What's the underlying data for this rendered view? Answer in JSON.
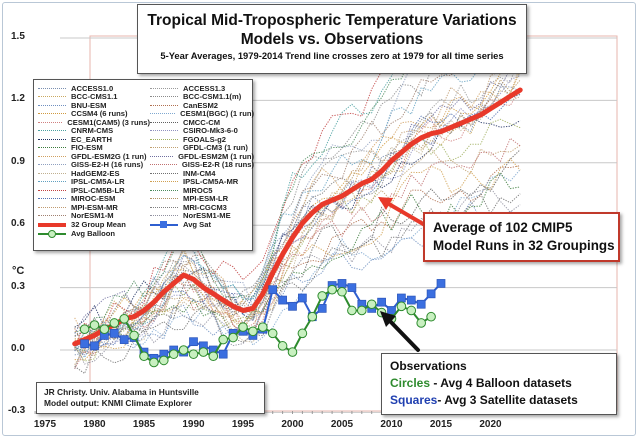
{
  "chart_data": {
    "type": "line",
    "title": "Tropical Mid-Tropospheric Temperature Variations",
    "subtitle": "Models vs. Observations",
    "note": "5-Year Averages, 1979-2014 Trend line crosses zero at 1979 for all time series",
    "xlabel": "",
    "ylabel": "°C",
    "xlim": [
      1974,
      2024
    ],
    "ylim": [
      -0.3,
      1.5
    ],
    "x_ticks": [
      1975,
      1980,
      1985,
      1990,
      1995,
      2000,
      2005,
      2010,
      2015,
      2020
    ],
    "y_ticks": [
      -0.3,
      0.0,
      0.3,
      0.6,
      0.9,
      1.2,
      1.5
    ],
    "y_tick_labels": [
      "-0.3",
      "0.0",
      "0.3",
      "0.6",
      "0.9",
      "1.2",
      "1.5"
    ],
    "unit_label": "°C",
    "grid": "horizontal",
    "legend": {
      "placement": "top-left",
      "entries": [
        {
          "name": "ACCESS1.0",
          "color": "#7a8fb0"
        },
        {
          "name": "ACCESS1.3",
          "color": "#9a9a9a"
        },
        {
          "name": "BCC-CMS1.1",
          "color": "#c9a860"
        },
        {
          "name": "BCC-CSM1.1(m)",
          "color": "#8a8a8a"
        },
        {
          "name": "BNU-ESM",
          "color": "#6f8fc0"
        },
        {
          "name": "CanESM2",
          "color": "#b07050"
        },
        {
          "name": "CCSM4 (6 runs)",
          "color": "#d09a40"
        },
        {
          "name": "CESM1(BGC) (1 run)",
          "color": "#7fa8d0"
        },
        {
          "name": "CESM1(CAM5) (3 runs)",
          "color": "#d08080"
        },
        {
          "name": "CMCC-CM",
          "color": "#606060"
        },
        {
          "name": "CNRM-CMS",
          "color": "#4aa0a0"
        },
        {
          "name": "CSIRO-Mk3-6-0",
          "color": "#9090c0"
        },
        {
          "name": "EC_EARTH",
          "color": "#203060"
        },
        {
          "name": "FGOALS-g2",
          "color": "#a0b060"
        },
        {
          "name": "FIO-ESM",
          "color": "#3a7a3a"
        },
        {
          "name": "GFDL-CM3 (1 run)",
          "color": "#c0a070"
        },
        {
          "name": "GFDL-ESM2G (1 run)",
          "color": "#d0a060"
        },
        {
          "name": "GFDL-ESM2M (1 run)",
          "color": "#6f6f9f"
        },
        {
          "name": "GISS-E2-H (16 runs)",
          "color": "#8fa0c0"
        },
        {
          "name": "GISS-E2-R (18 runs)",
          "color": "#c07070"
        },
        {
          "name": "HadGEM2-ES",
          "color": "#c0b090"
        },
        {
          "name": "INM-CM4",
          "color": "#707070"
        },
        {
          "name": "IPSL-CM5A-LR",
          "color": "#60a0c0"
        },
        {
          "name": "IPSL-CM5A-MR",
          "color": "#d0a050"
        },
        {
          "name": "IPSL-CM5B-LR",
          "color": "#c04040"
        },
        {
          "name": "MIROC5",
          "color": "#4a8a5a"
        },
        {
          "name": "MIROC-ESM",
          "color": "#5070b0"
        },
        {
          "name": "MPI-ESM-LR",
          "color": "#b09060"
        },
        {
          "name": "MPI-ESM-MR",
          "color": "#c09a70"
        },
        {
          "name": "MRI-CGCM3",
          "color": "#808080"
        },
        {
          "name": "NorESM1-M",
          "color": "#a08070"
        },
        {
          "name": "NorESM1-ME",
          "color": "#9090a0"
        },
        {
          "name": "32 Group Mean",
          "color": "#e8392a"
        },
        {
          "name": "Avg Sat",
          "color": "#2f5fd0"
        },
        {
          "name": "Avg Balloon",
          "color": "#2e8b2e"
        }
      ]
    },
    "series": [
      {
        "name": "32 Group Mean",
        "color": "#e8392a",
        "x": [
          1978,
          1979,
          1980,
          1981,
          1982,
          1983,
          1984,
          1985,
          1986,
          1987,
          1988,
          1989,
          1990,
          1991,
          1992,
          1993,
          1994,
          1995,
          1996,
          1997,
          1998,
          1999,
          2000,
          2001,
          2002,
          2003,
          2004,
          2005,
          2006,
          2007,
          2008,
          2009,
          2010,
          2011,
          2012,
          2013,
          2014,
          2015,
          2016,
          2017,
          2018,
          2019,
          2020,
          2021,
          2022,
          2023
        ],
        "values": [
          0.03,
          0.05,
          0.07,
          0.1,
          0.12,
          0.15,
          0.16,
          0.19,
          0.23,
          0.28,
          0.32,
          0.36,
          0.34,
          0.3,
          0.27,
          0.24,
          0.21,
          0.19,
          0.2,
          0.27,
          0.37,
          0.46,
          0.54,
          0.61,
          0.66,
          0.7,
          0.72,
          0.74,
          0.77,
          0.8,
          0.82,
          0.86,
          0.91,
          0.95,
          0.99,
          1.02,
          1.04,
          1.05,
          1.07,
          1.09,
          1.11,
          1.13,
          1.16,
          1.19,
          1.22,
          1.25
        ]
      },
      {
        "name": "Avg Sat",
        "color": "#2f5fd0",
        "marker": "square",
        "x": [
          1979,
          1980,
          1981,
          1982,
          1983,
          1984,
          1985,
          1986,
          1987,
          1988,
          1989,
          1990,
          1991,
          1992,
          1993,
          1994,
          1995,
          1996,
          1997,
          1998,
          1999,
          2000,
          2001,
          2002,
          2003,
          2004,
          2005,
          2006,
          2007,
          2008,
          2009,
          2010,
          2011,
          2012,
          2013,
          2014,
          2015
        ],
        "values": [
          0.03,
          0.02,
          0.07,
          0.08,
          0.05,
          0.06,
          -0.01,
          -0.04,
          -0.02,
          0.0,
          -0.01,
          0.04,
          0.02,
          0.0,
          -0.02,
          0.08,
          0.09,
          0.07,
          0.1,
          0.29,
          0.24,
          0.21,
          0.25,
          0.16,
          0.2,
          0.31,
          0.32,
          0.3,
          0.22,
          0.2,
          0.23,
          0.19,
          0.25,
          0.24,
          0.22,
          0.27,
          0.32
        ]
      },
      {
        "name": "Avg Balloon",
        "color": "#2e8b2e",
        "marker": "circle",
        "x": [
          1979,
          1980,
          1981,
          1982,
          1983,
          1984,
          1985,
          1986,
          1987,
          1988,
          1989,
          1990,
          1991,
          1992,
          1993,
          1994,
          1995,
          1996,
          1997,
          1998,
          1999,
          2000,
          2001,
          2002,
          2003,
          2004,
          2005,
          2006,
          2007,
          2008,
          2009,
          2010,
          2011,
          2012,
          2013,
          2014
        ],
        "values": [
          0.1,
          0.12,
          0.1,
          0.13,
          0.15,
          0.07,
          -0.03,
          -0.06,
          -0.05,
          -0.02,
          0.0,
          -0.02,
          -0.01,
          -0.03,
          0.05,
          0.06,
          0.11,
          0.09,
          0.11,
          0.08,
          0.02,
          -0.01,
          0.08,
          0.16,
          0.26,
          0.29,
          0.28,
          0.19,
          0.19,
          0.22,
          0.18,
          0.15,
          0.21,
          0.19,
          0.13,
          0.16
        ]
      }
    ],
    "annotations": [
      {
        "text": [
          "Average of 102 CMIP5",
          "Model Runs in 32 Groupings"
        ],
        "points_to": {
          "x": 2003,
          "y": 0.7
        },
        "arrow_color": "#e8392a"
      },
      {
        "text": [
          "Observations",
          "Circles - Avg 4 Balloon datasets",
          "Squares- Avg 3 Satellite datasets"
        ],
        "points_to": {
          "x": 2003,
          "y": 0.26
        },
        "arrow_color": "#000000"
      },
      {
        "text": [
          "JR Christy. Univ. Alabama in Huntsville",
          "Model output: KNMI Climate Explorer"
        ]
      }
    ]
  },
  "title": {
    "line1": "Tropical Mid-Tropospheric Temperature Variations",
    "line2": "Models vs. Observations",
    "line3": "5-Year Averages, 1979-2014 Trend line crosses zero at 1979 for all time series"
  },
  "callout": {
    "line1": "Average of 102 CMIP5",
    "line2": "Model Runs in 32 Groupings"
  },
  "observations_box": {
    "heading": "Observations",
    "circles_word": "Circles",
    "circles_rest": " - Avg 4 Balloon datasets",
    "squares_word": "Squares",
    "squares_rest": "- Avg 3 Satellite datasets"
  },
  "credit": {
    "line1": "JR Christy. Univ. Alabama in Huntsville",
    "line2": "Model output: KNMI Climate Explorer"
  }
}
